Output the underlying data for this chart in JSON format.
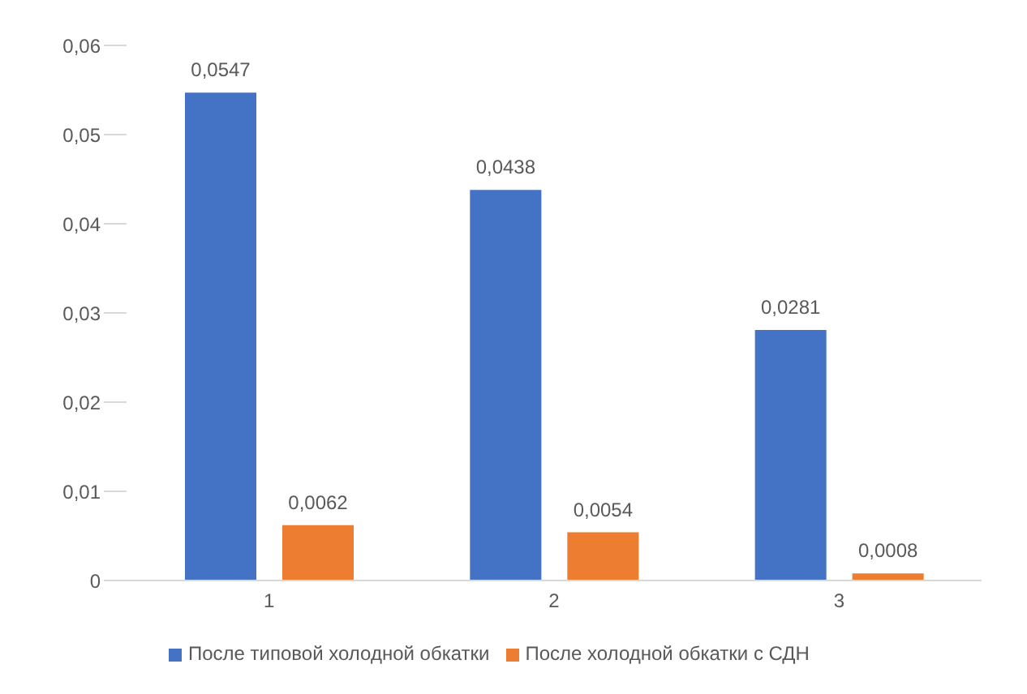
{
  "chart_data": {
    "type": "bar",
    "categories": [
      "1",
      "2",
      "3"
    ],
    "series": [
      {
        "name": "После типовой холодной обкатки",
        "color": "#4472c4",
        "values": [
          0.0547,
          0.0438,
          0.0281
        ],
        "value_labels": [
          "0,0547",
          "0,0438",
          "0,0281"
        ]
      },
      {
        "name": "После холодной обкатки с СДН",
        "color": "#ed7d31",
        "values": [
          0.0062,
          0.0054,
          0.0008
        ],
        "value_labels": [
          "0,0062",
          "0,0054",
          "0,0008"
        ]
      }
    ],
    "ylim": [
      0,
      0.06
    ],
    "yticks": [
      {
        "value": 0,
        "label": "0"
      },
      {
        "value": 0.01,
        "label": "0,01"
      },
      {
        "value": 0.02,
        "label": "0,02"
      },
      {
        "value": 0.03,
        "label": "0,03"
      },
      {
        "value": 0.04,
        "label": "0,04"
      },
      {
        "value": 0.05,
        "label": "0,05"
      },
      {
        "value": 0.06,
        "label": "0,06"
      }
    ],
    "legend": "bottom"
  }
}
